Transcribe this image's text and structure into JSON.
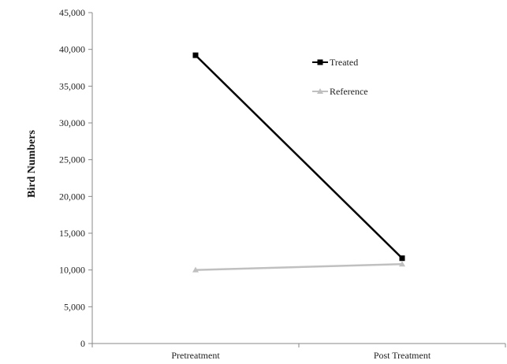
{
  "chart_data": {
    "type": "line",
    "title": "",
    "xlabel": "",
    "ylabel": "Bird Numbers",
    "categories": [
      "Pretreatment",
      "Post Treatment"
    ],
    "ylim": [
      0,
      45000
    ],
    "yticks": [
      0,
      5000,
      10000,
      15000,
      20000,
      25000,
      30000,
      35000,
      40000,
      45000
    ],
    "ytick_labels": [
      "0",
      "5,000",
      "10,000",
      "15,000",
      "20,000",
      "25,000",
      "30,000",
      "35,000",
      "40,000",
      "45,000"
    ],
    "grid": false,
    "legend_position": "top-right",
    "series": [
      {
        "name": "Treated",
        "values": [
          39200,
          11600
        ],
        "color": "#000000",
        "marker": "square"
      },
      {
        "name": "Reference",
        "values": [
          10000,
          10800
        ],
        "color": "#c0c0c0",
        "marker": "triangle"
      }
    ]
  }
}
